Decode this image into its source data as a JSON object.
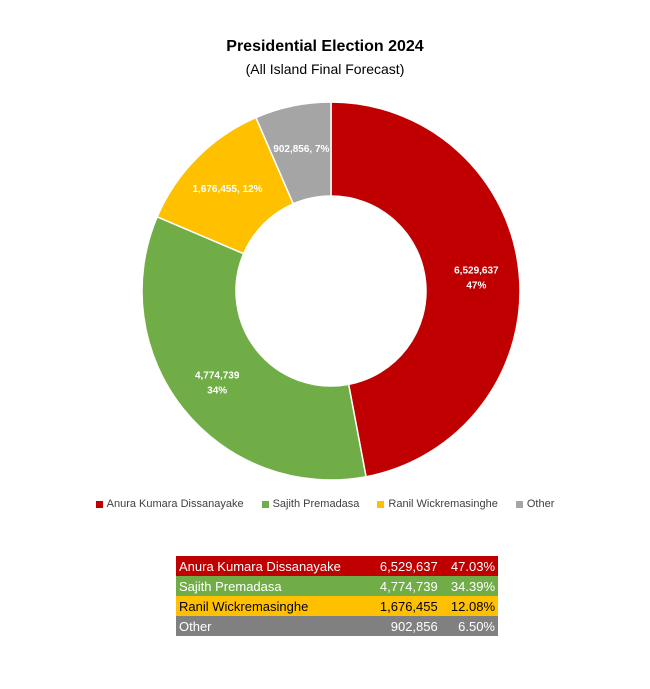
{
  "chart_data": {
    "type": "pie",
    "variant": "donut",
    "title": "Presidential Election 2024",
    "subtitle": "(All Island Final Forecast)",
    "legend_position": "bottom",
    "slices": [
      {
        "name": "Anura Kumara Dissanayake",
        "value": 6529637,
        "label_value": "6,529,637",
        "label_pct": "47%",
        "color": "#C00000"
      },
      {
        "name": "Sajith Premadasa",
        "value": 4774739,
        "label_value": "4,774,739",
        "label_pct": "34%",
        "color": "#70AD47"
      },
      {
        "name": "Ranil Wickremasinghe",
        "value": 1676455,
        "label_value": "1,676,455",
        "label_pct": "12%",
        "color": "#FFC000"
      },
      {
        "name": "Other",
        "value": 902856,
        "label_value": "902,856",
        "label_pct": "7%",
        "color": "#A5A5A5"
      }
    ]
  },
  "table": {
    "rows": [
      {
        "name": "Anura Kumara Dissanayake",
        "votes": "6,529,637",
        "pct": "47.03%",
        "bg": "#C00000",
        "fg": "#ffffff"
      },
      {
        "name": "Sajith Premadasa",
        "votes": "4,774,739",
        "pct": "34.39%",
        "bg": "#70AD47",
        "fg": "#ffffff"
      },
      {
        "name": "Ranil Wickremasinghe",
        "votes": "1,676,455",
        "pct": "12.08%",
        "bg": "#FFC000",
        "fg": "#000000"
      },
      {
        "name": "Other",
        "votes": "902,856",
        "pct": "6.50%",
        "bg": "#808080",
        "fg": "#ffffff"
      }
    ]
  }
}
